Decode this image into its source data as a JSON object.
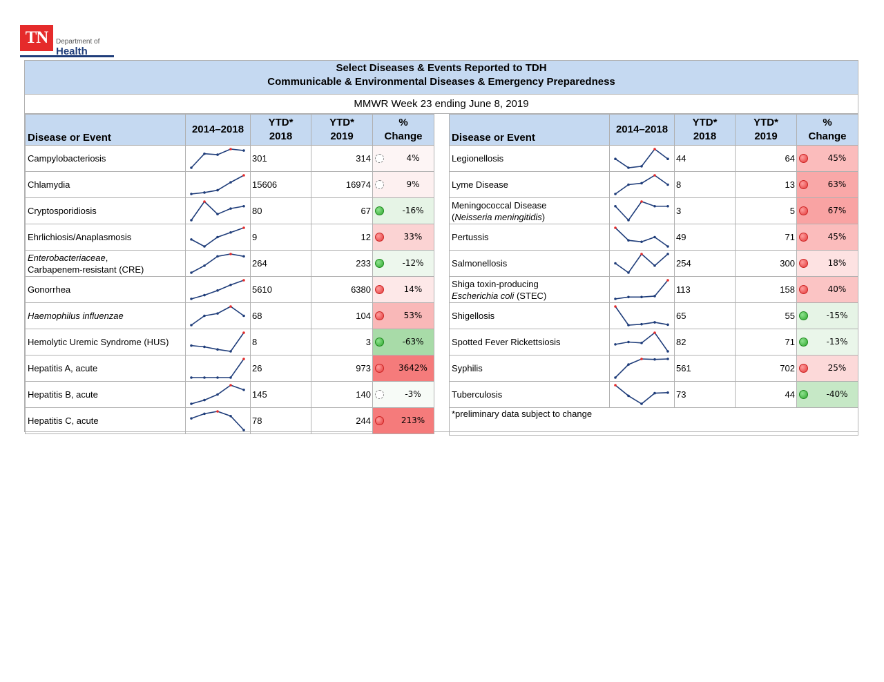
{
  "logo": {
    "abbr": "TN",
    "dept": "Department of",
    "name": "Health"
  },
  "title": {
    "line1": "Select Diseases & Events Reported to TDH",
    "line2": "Communicable & Environmental Diseases & Emergency Preparedness"
  },
  "week": "MMWR Week 23 ending June 8, 2019",
  "headers": {
    "disease": "Disease or Event",
    "trend": "2014–2018",
    "ytd2018_a": "YTD*",
    "ytd2018_b": "2018",
    "ytd2019_a": "YTD*",
    "ytd2019_b": "2019",
    "pct_a": "%",
    "pct_b": "Change"
  },
  "colors": {
    "header_bg": "#c5d9f1",
    "spark_line": "#1f3d7a",
    "spark_max": "#e52b2b",
    "increase_high": "#f57b7b",
    "decrease": "#e6f4e6"
  },
  "left_rows": [
    {
      "name": "Campylobacteriosis",
      "ytd2018": "301",
      "ytd2019": "314",
      "pct": "4%",
      "status": "neutral",
      "trend": [
        1,
        4,
        3.8,
        5,
        4.7
      ],
      "bg": "#fdf5f5"
    },
    {
      "name": "Chlamydia",
      "ytd2018": "15606",
      "ytd2019": "16974",
      "pct": "9%",
      "status": "neutral",
      "trend": [
        1,
        1.3,
        1.8,
        3.5,
        5
      ],
      "bg": "#fdf0f0"
    },
    {
      "name": "Cryptosporidiosis",
      "ytd2018": "80",
      "ytd2019": "67",
      "pct": "-16%",
      "status": "down",
      "trend": [
        1,
        5,
        2.3,
        3.5,
        4
      ],
      "bg": "#e6f4e6"
    },
    {
      "name": "Ehrlichiosis/Anaplasmosis",
      "ytd2018": "9",
      "ytd2019": "12",
      "pct": "33%",
      "status": "up",
      "trend": [
        2.5,
        1,
        3,
        4,
        5
      ],
      "bg": "#fbd3d3"
    },
    {
      "name_parts": [
        {
          "t": "Enterobacteriaceae",
          "i": true
        },
        {
          "t": ",",
          "i": false
        }
      ],
      "name2": "Carbapenem-resistant (CRE)",
      "ytd2018": "264",
      "ytd2019": "233",
      "pct": "-12%",
      "status": "down",
      "trend": [
        1,
        2.5,
        4.5,
        5,
        4.5
      ],
      "bg": "#edf7ed"
    },
    {
      "name": "Gonorrhea",
      "ytd2018": "5610",
      "ytd2019": "6380",
      "pct": "14%",
      "status": "up",
      "trend": [
        1,
        1.8,
        2.8,
        4,
        5
      ],
      "bg": "#fde8e8"
    },
    {
      "name_parts": [
        {
          "t": "Haemophilus influenzae",
          "i": true
        }
      ],
      "ytd2018": "68",
      "ytd2019": "104",
      "pct": "53%",
      "status": "up",
      "trend": [
        1,
        3,
        3.5,
        5,
        3
      ],
      "bg": "#f9b8b8"
    },
    {
      "name": "Hemolytic Uremic Syndrome (HUS)",
      "ytd2018": "8",
      "ytd2019": "3",
      "pct": "-63%",
      "status": "down",
      "trend": [
        3,
        2.8,
        2.4,
        2.1,
        5
      ],
      "bg": "#a8dba8"
    },
    {
      "name": "Hepatitis A, acute",
      "ytd2018": "26",
      "ytd2019": "973",
      "pct": "3642%",
      "status": "up",
      "trend": [
        1,
        1,
        1,
        1,
        5
      ],
      "bg": "#f57b7b"
    },
    {
      "name": "Hepatitis B, acute",
      "ytd2018": "145",
      "ytd2019": "140",
      "pct": "-3%",
      "status": "neutral",
      "trend": [
        1,
        1.8,
        3,
        5,
        4
      ],
      "bg": "#f7fbf7"
    },
    {
      "name": "Hepatitis C, acute",
      "ytd2018": "78",
      "ytd2019": "244",
      "pct": "213%",
      "status": "up",
      "trend": [
        3.5,
        4.5,
        5,
        4,
        1
      ],
      "bg": "#f57b7b"
    }
  ],
  "right_rows": [
    {
      "name": "Legionellosis",
      "ytd2018": "44",
      "ytd2019": "64",
      "pct": "45%",
      "status": "up",
      "trend": [
        3,
        1.2,
        1.5,
        5,
        3
      ],
      "bg": "#fbbcbc"
    },
    {
      "name": "Lyme Disease",
      "ytd2018": "8",
      "ytd2019": "13",
      "pct": "63%",
      "status": "up",
      "trend": [
        1,
        3,
        3.3,
        5,
        3
      ],
      "bg": "#f9a8a8"
    },
    {
      "name": "Meningococcal Disease",
      "name2_parts": [
        {
          "t": "(",
          "i": false
        },
        {
          "t": "Neisseria meningitidis",
          "i": true
        },
        {
          "t": ")",
          "i": false
        }
      ],
      "ytd2018": "3",
      "ytd2019": "5",
      "pct": "67%",
      "status": "up",
      "trend": [
        4,
        1,
        5,
        4,
        4
      ],
      "bg": "#f9a3a3"
    },
    {
      "name": "Pertussis",
      "ytd2018": "49",
      "ytd2019": "71",
      "pct": "45%",
      "status": "up",
      "trend": [
        5,
        2.3,
        2,
        3,
        1
      ],
      "bg": "#fbbcbc"
    },
    {
      "name": "Salmonellosis",
      "ytd2018": "254",
      "ytd2019": "300",
      "pct": "18%",
      "status": "up",
      "trend": [
        3,
        1,
        5,
        2.5,
        5
      ],
      "bg": "#fde2e2"
    },
    {
      "name": "Shiga toxin-producing",
      "name2_parts": [
        {
          "t": "Escherichia coli",
          "i": true
        },
        {
          "t": " (STEC)",
          "i": false
        }
      ],
      "ytd2018": "113",
      "ytd2019": "158",
      "pct": "40%",
      "status": "up",
      "trend": [
        1,
        1.4,
        1.4,
        1.6,
        5
      ],
      "bg": "#fbc4c4"
    },
    {
      "name": "Shigellosis",
      "ytd2018": "65",
      "ytd2019": "55",
      "pct": "-15%",
      "status": "down",
      "trend": [
        5,
        1,
        1.2,
        1.6,
        1.1
      ],
      "bg": "#e6f4e6"
    },
    {
      "name": "Spotted Fever Rickettsiosis",
      "ytd2018": "82",
      "ytd2019": "71",
      "pct": "-13%",
      "status": "down",
      "trend": [
        2.5,
        3,
        2.8,
        5,
        1
      ],
      "bg": "#eaf6ea"
    },
    {
      "name": "Syphilis",
      "ytd2018": "561",
      "ytd2019": "702",
      "pct": "25%",
      "status": "up",
      "trend": [
        1,
        3.8,
        5,
        4.9,
        5
      ],
      "bg": "#fcd9d9"
    },
    {
      "name": "Tuberculosis",
      "ytd2018": "73",
      "ytd2019": "44",
      "pct": "-40%",
      "status": "down",
      "trend": [
        5,
        3,
        1.5,
        3.5,
        3.6
      ],
      "bg": "#c6e8c6"
    }
  ],
  "footnote": "*preliminary data subject to change"
}
